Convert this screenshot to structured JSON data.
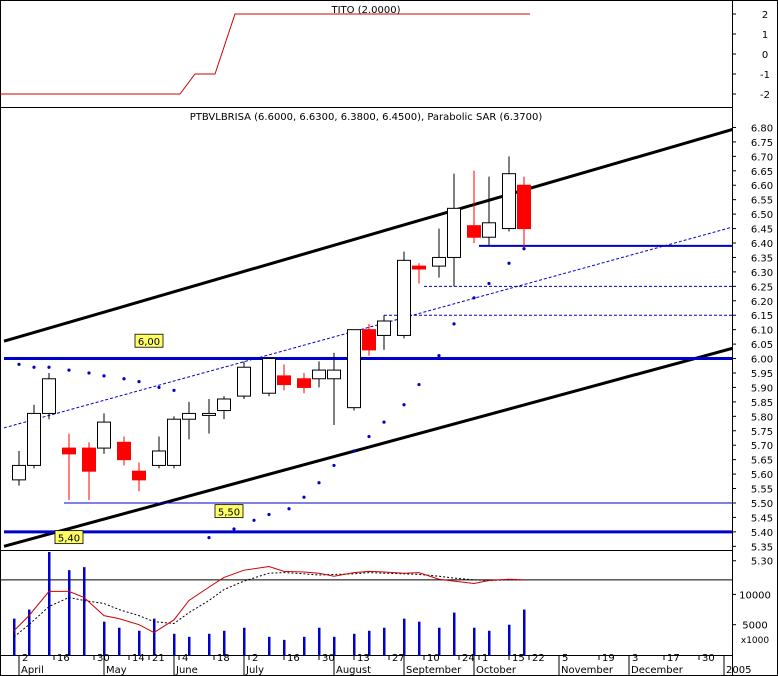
{
  "chart_data": [
    {
      "panel": "indicator",
      "type": "line",
      "title": "TITO (2.0000)",
      "y_ticks": [
        "2",
        "1",
        "0",
        "-1",
        "-2"
      ],
      "ylim": [
        -2.2,
        2.2
      ],
      "color": "#d00000",
      "steps": [
        {
          "x": 0,
          "y": -2
        },
        {
          "x": 36,
          "y": -2
        },
        {
          "x": 39,
          "y": -1
        },
        {
          "x": 43,
          "y": -1
        },
        {
          "x": 47,
          "y": 2
        },
        {
          "x": 106,
          "y": 2
        }
      ]
    },
    {
      "panel": "price",
      "type": "candlestick",
      "title": "PTBVLBRISA (6.6000, 6.6300, 6.3800, 6.4500), Parabolic SAR (6.3700)",
      "ylim": [
        5.26,
        6.83
      ],
      "y_ticks": [
        "6.80",
        "6.75",
        "6.70",
        "6.65",
        "6.60",
        "6.55",
        "6.50",
        "6.45",
        "6.40",
        "6.35",
        "6.30",
        "6.25",
        "6.20",
        "6.15",
        "6.10",
        "6.05",
        "6.00",
        "5.95",
        "5.90",
        "5.85",
        "5.80",
        "5.75",
        "5.70",
        "5.65",
        "5.60",
        "5.55",
        "5.50",
        "5.45",
        "5.40",
        "5.35",
        "5.30"
      ],
      "x_labels": [
        {
          "x": 2,
          "text": "2"
        },
        {
          "x": 9,
          "text": "16"
        },
        {
          "x": 17,
          "text": "30"
        },
        {
          "x": 24,
          "text": "14"
        },
        {
          "x": 28,
          "text": "21"
        },
        {
          "x": 34,
          "text": "4"
        },
        {
          "x": 41,
          "text": "18"
        },
        {
          "x": 48,
          "text": "2"
        },
        {
          "x": 55,
          "text": "16"
        },
        {
          "x": 62,
          "text": "30"
        },
        {
          "x": 69,
          "text": "13"
        },
        {
          "x": 76,
          "text": "27"
        },
        {
          "x": 83,
          "text": "10"
        },
        {
          "x": 90,
          "text": "24"
        },
        {
          "x": 94,
          "text": "1"
        },
        {
          "x": 100,
          "text": "15"
        },
        {
          "x": 104,
          "text": "22"
        },
        {
          "x": 110,
          "text": "5"
        },
        {
          "x": 118,
          "text": "19"
        },
        {
          "x": 124,
          "text": "3"
        },
        {
          "x": 131,
          "text": "17"
        },
        {
          "x": 138,
          "text": "30"
        },
        {
          "x": 145,
          "text": "14"
        }
      ],
      "months": [
        {
          "x": 2,
          "text": "April"
        },
        {
          "x": 19,
          "text": "May"
        },
        {
          "x": 33,
          "text": "June"
        },
        {
          "x": 47,
          "text": "July"
        },
        {
          "x": 65,
          "text": "August"
        },
        {
          "x": 79,
          "text": "September"
        },
        {
          "x": 93,
          "text": "October"
        },
        {
          "x": 110,
          "text": "November"
        },
        {
          "x": 124,
          "text": "December"
        },
        {
          "x": 143,
          "text": "2005"
        }
      ],
      "candles": [
        {
          "x": 2,
          "o": 5.58,
          "h": 5.68,
          "l": 5.56,
          "c": 5.63
        },
        {
          "x": 5,
          "o": 5.63,
          "h": 5.84,
          "l": 5.62,
          "c": 5.81
        },
        {
          "x": 8,
          "o": 5.81,
          "h": 5.95,
          "l": 5.79,
          "c": 5.93
        },
        {
          "x": 12,
          "o": 5.69,
          "h": 5.74,
          "l": 5.51,
          "c": 5.67
        },
        {
          "x": 16,
          "o": 5.69,
          "h": 5.71,
          "l": 5.51,
          "c": 5.61
        },
        {
          "x": 19,
          "o": 5.69,
          "h": 5.81,
          "l": 5.67,
          "c": 5.78
        },
        {
          "x": 23,
          "o": 5.71,
          "h": 5.73,
          "l": 5.63,
          "c": 5.65
        },
        {
          "x": 26,
          "o": 5.61,
          "h": 5.64,
          "l": 5.54,
          "c": 5.58
        },
        {
          "x": 30,
          "o": 5.63,
          "h": 5.73,
          "l": 5.62,
          "c": 5.68
        },
        {
          "x": 33,
          "o": 5.63,
          "h": 5.8,
          "l": 5.62,
          "c": 5.79
        },
        {
          "x": 36,
          "o": 5.79,
          "h": 5.85,
          "l": 5.72,
          "c": 5.81
        },
        {
          "x": 40,
          "o": 5.81,
          "h": 5.86,
          "l": 5.74,
          "c": 5.81
        },
        {
          "x": 43,
          "o": 5.82,
          "h": 5.87,
          "l": 5.79,
          "c": 5.86
        },
        {
          "x": 47,
          "o": 5.87,
          "h": 5.99,
          "l": 5.86,
          "c": 5.97
        },
        {
          "x": 52,
          "o": 5.88,
          "h": 6.0,
          "l": 5.87,
          "c": 6.0
        },
        {
          "x": 55,
          "o": 5.94,
          "h": 5.98,
          "l": 5.89,
          "c": 5.91
        },
        {
          "x": 59,
          "o": 5.93,
          "h": 5.95,
          "l": 5.88,
          "c": 5.9
        },
        {
          "x": 62,
          "o": 5.93,
          "h": 5.99,
          "l": 5.9,
          "c": 5.96
        },
        {
          "x": 65,
          "o": 5.93,
          "h": 6.02,
          "l": 5.77,
          "c": 5.96
        },
        {
          "x": 69,
          "o": 5.83,
          "h": 6.1,
          "l": 5.82,
          "c": 6.1
        },
        {
          "x": 72,
          "o": 6.1,
          "h": 6.12,
          "l": 6.01,
          "c": 6.03
        },
        {
          "x": 75,
          "o": 6.08,
          "h": 6.15,
          "l": 6.03,
          "c": 6.13
        },
        {
          "x": 79,
          "o": 6.08,
          "h": 6.37,
          "l": 6.07,
          "c": 6.34
        },
        {
          "x": 82,
          "o": 6.32,
          "h": 6.33,
          "l": 6.26,
          "c": 6.31
        },
        {
          "x": 86,
          "o": 6.32,
          "h": 6.45,
          "l": 6.28,
          "c": 6.35
        },
        {
          "x": 89,
          "o": 6.35,
          "h": 6.64,
          "l": 6.25,
          "c": 6.52
        },
        {
          "x": 93,
          "o": 6.46,
          "h": 6.65,
          "l": 6.4,
          "c": 6.42
        },
        {
          "x": 96,
          "o": 6.42,
          "h": 6.63,
          "l": 6.39,
          "c": 6.47
        },
        {
          "x": 100,
          "o": 6.45,
          "h": 6.7,
          "l": 6.44,
          "c": 6.64
        },
        {
          "x": 103,
          "o": 6.6,
          "h": 6.63,
          "l": 6.38,
          "c": 6.45
        }
      ],
      "sar": [
        {
          "x": 2,
          "y": 5.98
        },
        {
          "x": 5,
          "y": 5.97
        },
        {
          "x": 8,
          "y": 5.97
        },
        {
          "x": 12,
          "y": 5.96
        },
        {
          "x": 16,
          "y": 5.95
        },
        {
          "x": 19,
          "y": 5.94
        },
        {
          "x": 23,
          "y": 5.93
        },
        {
          "x": 26,
          "y": 5.92
        },
        {
          "x": 30,
          "y": 5.9
        },
        {
          "x": 33,
          "y": 5.89
        },
        {
          "x": 40,
          "y": 5.38
        },
        {
          "x": 45,
          "y": 5.41
        },
        {
          "x": 49,
          "y": 5.44
        },
        {
          "x": 52,
          "y": 5.46
        },
        {
          "x": 56,
          "y": 5.48
        },
        {
          "x": 59,
          "y": 5.52
        },
        {
          "x": 62,
          "y": 5.57
        },
        {
          "x": 65,
          "y": 5.63
        },
        {
          "x": 69,
          "y": 5.68
        },
        {
          "x": 72,
          "y": 5.73
        },
        {
          "x": 75,
          "y": 5.78
        },
        {
          "x": 79,
          "y": 5.84
        },
        {
          "x": 82,
          "y": 5.91
        },
        {
          "x": 86,
          "y": 6.01
        },
        {
          "x": 89,
          "y": 6.12
        },
        {
          "x": 93,
          "y": 6.21
        },
        {
          "x": 96,
          "y": 6.26
        },
        {
          "x": 100,
          "y": 6.33
        },
        {
          "x": 103,
          "y": 6.38
        }
      ],
      "trend_lines": [
        {
          "x1": -1,
          "y1": 6.06,
          "x2": 152,
          "y2": 6.83,
          "color": "#000000",
          "width": 3
        },
        {
          "x1": -1,
          "y1": 5.35,
          "x2": 152,
          "y2": 6.07,
          "color": "#000000",
          "width": 3
        },
        {
          "x1": -1,
          "y1": 5.76,
          "x2": 152,
          "y2": 6.49,
          "color": "#0000cc",
          "width": 1,
          "dashed": true
        }
      ],
      "h_lines": [
        {
          "y": 6.0,
          "x1": -1,
          "x2": 152,
          "width": 3
        },
        {
          "y": 5.4,
          "x1": -1,
          "x2": 152,
          "width": 3
        },
        {
          "y": 5.5,
          "x1": 11,
          "x2": 152,
          "width": 1
        },
        {
          "y": 6.39,
          "x1": 94,
          "x2": 152,
          "width": 2
        },
        {
          "y": 6.25,
          "x1": 83,
          "x2": 152,
          "width": 1,
          "dashed": true
        },
        {
          "y": 6.15,
          "x1": 75,
          "x2": 152,
          "width": 1,
          "dashed": true
        }
      ],
      "level_labels": [
        {
          "x": 28,
          "y": 6.06,
          "text": "6,00"
        },
        {
          "x": 12,
          "y": 5.38,
          "text": "5,40"
        },
        {
          "x": 44,
          "y": 5.47,
          "text": "5,50"
        }
      ]
    },
    {
      "panel": "volume",
      "type": "bar",
      "unit_label": "x1000",
      "y_ticks": [
        "10000",
        "5000"
      ],
      "ylim": [
        0,
        17000
      ],
      "bars": [
        {
          "x": 1,
          "v": 6000
        },
        {
          "x": 4,
          "v": 7500
        },
        {
          "x": 8,
          "v": 17000
        },
        {
          "x": 12,
          "v": 14000
        },
        {
          "x": 15,
          "v": 14500
        },
        {
          "x": 19,
          "v": 5500
        },
        {
          "x": 22,
          "v": 4500
        },
        {
          "x": 26,
          "v": 4000
        },
        {
          "x": 29,
          "v": 6000
        },
        {
          "x": 33,
          "v": 3500
        },
        {
          "x": 36,
          "v": 3000
        },
        {
          "x": 40,
          "v": 3500
        },
        {
          "x": 43,
          "v": 4000
        },
        {
          "x": 47,
          "v": 4500
        },
        {
          "x": 52,
          "v": 3000
        },
        {
          "x": 55,
          "v": 2500
        },
        {
          "x": 59,
          "v": 3000
        },
        {
          "x": 62,
          "v": 4500
        },
        {
          "x": 65,
          "v": 3000
        },
        {
          "x": 69,
          "v": 3500
        },
        {
          "x": 72,
          "v": 4000
        },
        {
          "x": 75,
          "v": 4500
        },
        {
          "x": 79,
          "v": 6000
        },
        {
          "x": 82,
          "v": 5500
        },
        {
          "x": 86,
          "v": 4500
        },
        {
          "x": 89,
          "v": 7000
        },
        {
          "x": 93,
          "v": 4500
        },
        {
          "x": 96,
          "v": 4000
        },
        {
          "x": 100,
          "v": 5000
        },
        {
          "x": 103,
          "v": 7500
        }
      ],
      "ma_fast": [
        {
          "x": 1,
          "v": 4000
        },
        {
          "x": 4,
          "v": 6500
        },
        {
          "x": 8,
          "v": 10500
        },
        {
          "x": 12,
          "v": 10500
        },
        {
          "x": 15,
          "v": 9500
        },
        {
          "x": 19,
          "v": 6500
        },
        {
          "x": 22,
          "v": 6000
        },
        {
          "x": 26,
          "v": 5000
        },
        {
          "x": 29,
          "v": 3700
        },
        {
          "x": 33,
          "v": 5800
        },
        {
          "x": 36,
          "v": 9000
        },
        {
          "x": 40,
          "v": 11200
        },
        {
          "x": 43,
          "v": 12800
        },
        {
          "x": 47,
          "v": 14000
        },
        {
          "x": 52,
          "v": 14600
        },
        {
          "x": 55,
          "v": 13800
        },
        {
          "x": 59,
          "v": 13700
        },
        {
          "x": 62,
          "v": 13500
        },
        {
          "x": 65,
          "v": 13000
        },
        {
          "x": 69,
          "v": 13600
        },
        {
          "x": 72,
          "v": 13800
        },
        {
          "x": 75,
          "v": 13700
        },
        {
          "x": 79,
          "v": 13500
        },
        {
          "x": 82,
          "v": 13600
        },
        {
          "x": 86,
          "v": 12500
        },
        {
          "x": 89,
          "v": 12200
        },
        {
          "x": 93,
          "v": 11800
        },
        {
          "x": 96,
          "v": 12300
        },
        {
          "x": 100,
          "v": 12500
        },
        {
          "x": 103,
          "v": 12400
        }
      ],
      "ma_slow": [
        {
          "x": 1,
          "v": 3000
        },
        {
          "x": 4,
          "v": 5000
        },
        {
          "x": 8,
          "v": 8000
        },
        {
          "x": 12,
          "v": 9500
        },
        {
          "x": 15,
          "v": 9000
        },
        {
          "x": 19,
          "v": 8500
        },
        {
          "x": 22,
          "v": 7500
        },
        {
          "x": 26,
          "v": 6500
        },
        {
          "x": 29,
          "v": 5500
        },
        {
          "x": 33,
          "v": 5200
        },
        {
          "x": 36,
          "v": 7000
        },
        {
          "x": 40,
          "v": 9000
        },
        {
          "x": 43,
          "v": 10800
        },
        {
          "x": 47,
          "v": 12200
        },
        {
          "x": 52,
          "v": 13500
        },
        {
          "x": 55,
          "v": 13600
        },
        {
          "x": 59,
          "v": 13400
        },
        {
          "x": 62,
          "v": 13200
        },
        {
          "x": 65,
          "v": 13300
        },
        {
          "x": 69,
          "v": 13400
        },
        {
          "x": 72,
          "v": 13600
        },
        {
          "x": 75,
          "v": 13500
        },
        {
          "x": 79,
          "v": 13400
        },
        {
          "x": 82,
          "v": 13300
        },
        {
          "x": 86,
          "v": 13000
        },
        {
          "x": 89,
          "v": 12700
        },
        {
          "x": 93,
          "v": 12400
        },
        {
          "x": 96,
          "v": 12300
        },
        {
          "x": 100,
          "v": 12400
        },
        {
          "x": 103,
          "v": 12400
        }
      ],
      "reference_level": 12400
    }
  ],
  "colors": {
    "bull_candle": "#ffffff",
    "bear_candle": "#ff0000",
    "sar_dot": "#0000cc",
    "volume_bar": "#0000cc",
    "ma_fast": "#d00000",
    "ma_slow": "#000000",
    "hline": "#0000cc",
    "label_bg": "#ffff66"
  }
}
